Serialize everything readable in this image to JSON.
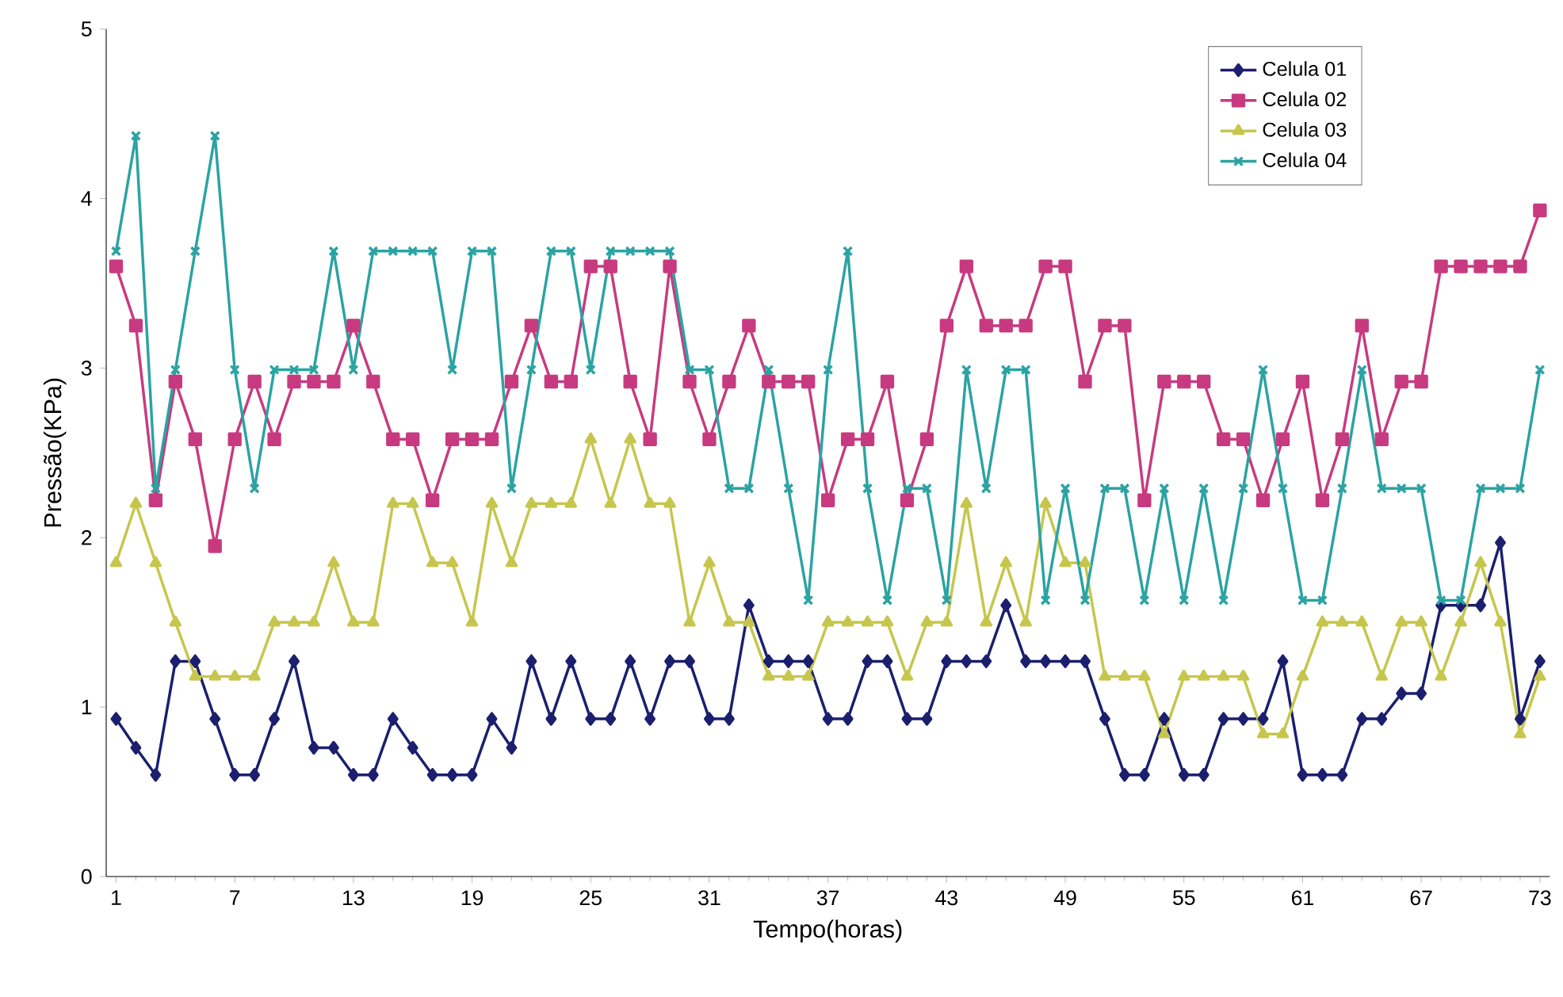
{
  "chart_data": {
    "type": "line",
    "xlabel": "Tempo(horas)",
    "ylabel": "Pressão(KPa)",
    "x": [
      1,
      2,
      3,
      4,
      5,
      6,
      7,
      8,
      9,
      10,
      11,
      12,
      13,
      14,
      15,
      16,
      17,
      18,
      19,
      20,
      21,
      22,
      23,
      24,
      25,
      26,
      27,
      28,
      29,
      30,
      31,
      32,
      33,
      34,
      35,
      36,
      37,
      38,
      39,
      40,
      41,
      42,
      43,
      44,
      45,
      46,
      47,
      48,
      49,
      50,
      51,
      52,
      53,
      54,
      55,
      56,
      57,
      58,
      59,
      60,
      61,
      62,
      63,
      64,
      65,
      66,
      67,
      68,
      69,
      70,
      71,
      72,
      73
    ],
    "xlim": [
      0.5,
      73.5
    ],
    "xticks": [
      1,
      7,
      13,
      19,
      25,
      31,
      37,
      43,
      49,
      55,
      61,
      67,
      73
    ],
    "ylim": [
      0,
      5
    ],
    "yticks": [
      0,
      1,
      2,
      3,
      4,
      5
    ],
    "grid": false,
    "legend": "top right",
    "series": [
      {
        "name": "Celula 01",
        "color": "#1b1f6e",
        "marker": "diamond",
        "values": [
          0.93,
          0.76,
          0.6,
          1.27,
          1.27,
          0.93,
          0.6,
          0.6,
          0.93,
          1.27,
          0.76,
          0.76,
          0.6,
          0.6,
          0.93,
          0.76,
          0.6,
          0.6,
          0.6,
          0.93,
          0.76,
          1.27,
          0.93,
          1.27,
          0.93,
          0.93,
          1.27,
          0.93,
          1.27,
          1.27,
          0.93,
          0.93,
          1.6,
          1.27,
          1.27,
          1.27,
          0.93,
          0.93,
          1.27,
          1.27,
          0.93,
          0.93,
          1.27,
          1.27,
          1.27,
          1.6,
          1.27,
          1.27,
          1.27,
          1.27,
          0.93,
          0.6,
          0.6,
          0.93,
          0.6,
          0.6,
          0.93,
          0.93,
          0.93,
          1.27,
          0.6,
          0.6,
          0.6,
          0.93,
          0.93,
          1.08,
          1.08,
          1.6,
          1.6,
          1.6,
          1.97,
          0.93,
          1.27
        ]
      },
      {
        "name": "Celula 02",
        "color": "#c83a80",
        "marker": "square",
        "values": [
          3.6,
          3.25,
          2.22,
          2.92,
          2.58,
          1.95,
          2.58,
          2.92,
          2.58,
          2.92,
          2.92,
          2.92,
          3.25,
          2.92,
          2.58,
          2.58,
          2.22,
          2.58,
          2.58,
          2.58,
          2.92,
          3.25,
          2.92,
          2.92,
          3.6,
          3.6,
          2.92,
          2.58,
          3.6,
          2.92,
          2.58,
          2.92,
          3.25,
          2.92,
          2.92,
          2.92,
          2.22,
          2.58,
          2.58,
          2.92,
          2.22,
          2.58,
          3.25,
          3.6,
          3.25,
          3.25,
          3.25,
          3.6,
          3.6,
          2.92,
          3.25,
          3.25,
          2.22,
          2.92,
          2.92,
          2.92,
          2.58,
          2.58,
          2.22,
          2.58,
          2.92,
          2.22,
          2.58,
          3.25,
          2.58,
          2.92,
          2.92,
          3.6,
          3.6,
          3.6,
          3.6,
          3.6,
          3.93
        ]
      },
      {
        "name": "Celula 03",
        "color": "#c6c64c",
        "marker": "triangle",
        "values": [
          1.85,
          2.2,
          1.85,
          1.5,
          1.18,
          1.18,
          1.18,
          1.18,
          1.5,
          1.5,
          1.5,
          1.85,
          1.5,
          1.5,
          2.2,
          2.2,
          1.85,
          1.85,
          1.5,
          2.2,
          1.85,
          2.2,
          2.2,
          2.2,
          2.58,
          2.2,
          2.58,
          2.2,
          2.2,
          1.5,
          1.85,
          1.5,
          1.5,
          1.18,
          1.18,
          1.18,
          1.5,
          1.5,
          1.5,
          1.5,
          1.18,
          1.5,
          1.5,
          2.2,
          1.5,
          1.85,
          1.5,
          2.2,
          1.85,
          1.85,
          1.18,
          1.18,
          1.18,
          0.84,
          1.18,
          1.18,
          1.18,
          1.18,
          0.84,
          0.84,
          1.18,
          1.5,
          1.5,
          1.5,
          1.18,
          1.5,
          1.5,
          1.18,
          1.5,
          1.85,
          1.5,
          0.84,
          1.18
        ]
      },
      {
        "name": "Celula 04",
        "color": "#2ba3a3",
        "marker": "cross",
        "values": [
          3.69,
          4.37,
          2.29,
          2.99,
          3.69,
          4.37,
          2.99,
          2.29,
          2.99,
          2.99,
          2.99,
          3.69,
          2.99,
          3.69,
          3.69,
          3.69,
          3.69,
          2.99,
          3.69,
          3.69,
          2.29,
          2.99,
          3.69,
          3.69,
          2.99,
          3.69,
          3.69,
          3.69,
          3.69,
          2.99,
          2.99,
          2.29,
          2.29,
          2.99,
          2.29,
          1.63,
          2.99,
          3.69,
          2.29,
          1.63,
          2.29,
          2.29,
          1.63,
          2.99,
          2.29,
          2.99,
          2.99,
          1.63,
          2.29,
          1.63,
          2.29,
          2.29,
          1.63,
          2.29,
          1.63,
          2.29,
          1.63,
          2.29,
          2.99,
          2.29,
          1.63,
          1.63,
          2.29,
          2.99,
          2.29,
          2.29,
          2.29,
          1.63,
          1.63,
          2.29,
          2.29,
          2.29,
          2.99
        ]
      }
    ]
  }
}
